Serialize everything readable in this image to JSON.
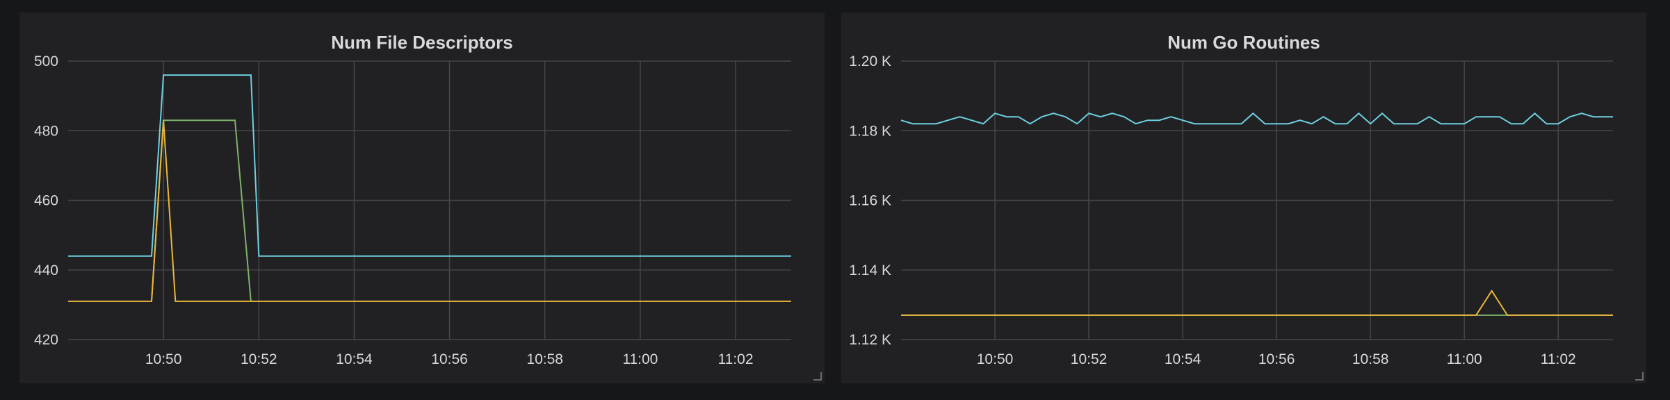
{
  "colors": {
    "background": "#161719",
    "panel": "#212124",
    "grid": "#464649",
    "text": "#d8d9da"
  },
  "chart_data": [
    {
      "type": "line",
      "title": "Num File Descriptors",
      "xlabel": "",
      "ylabel": "",
      "x_ticks": [
        "10:50",
        "10:52",
        "10:54",
        "10:56",
        "10:58",
        "11:00",
        "11:02"
      ],
      "y_ticks": [
        "500",
        "480",
        "460",
        "440",
        "420"
      ],
      "ylim": [
        420,
        500
      ],
      "xlim": [
        "10:48:00",
        "11:03:10"
      ],
      "grid": true,
      "series": [
        {
          "color": "#6ed0e0",
          "x": [
            "10:48:00",
            "10:49:45",
            "10:50:00",
            "10:51:50",
            "10:52:00",
            "11:03:10"
          ],
          "y": [
            444,
            444,
            496,
            496,
            444,
            444
          ]
        },
        {
          "color": "#7eb26d",
          "x": [
            "10:49:45",
            "10:50:00",
            "10:51:30",
            "10:51:50"
          ],
          "y": [
            431,
            483,
            483,
            431
          ]
        },
        {
          "color": "#eab839",
          "x": [
            "10:48:00",
            "10:49:45",
            "10:50:00",
            "10:50:15",
            "11:03:10"
          ],
          "y": [
            431,
            431,
            483,
            431,
            431
          ]
        }
      ]
    },
    {
      "type": "line",
      "title": "Num Go Routines",
      "xlabel": "",
      "ylabel": "",
      "x_ticks": [
        "10:50",
        "10:52",
        "10:54",
        "10:56",
        "10:58",
        "11:00",
        "11:02"
      ],
      "y_ticks": [
        "1.20 K",
        "1.18 K",
        "1.16 K",
        "1.14 K",
        "1.12 K"
      ],
      "ylim": [
        1120,
        1200
      ],
      "xlim": [
        "10:48:00",
        "11:03:10"
      ],
      "grid": true,
      "series": [
        {
          "color": "#6ed0e0",
          "x": [
            "10:48:00",
            "10:48:15",
            "10:48:30",
            "10:48:45",
            "10:49:00",
            "10:49:15",
            "10:49:30",
            "10:49:45",
            "10:50:00",
            "10:50:15",
            "10:50:30",
            "10:50:45",
            "10:51:00",
            "10:51:15",
            "10:51:30",
            "10:51:45",
            "10:52:00",
            "10:52:15",
            "10:52:30",
            "10:52:45",
            "10:53:00",
            "10:53:15",
            "10:53:30",
            "10:53:45",
            "10:54:00",
            "10:54:15",
            "10:54:30",
            "10:54:45",
            "10:55:00",
            "10:55:15",
            "10:55:30",
            "10:55:45",
            "10:56:00",
            "10:56:15",
            "10:56:30",
            "10:56:45",
            "10:57:00",
            "10:57:15",
            "10:57:30",
            "10:57:45",
            "10:58:00",
            "10:58:15",
            "10:58:30",
            "10:58:45",
            "10:59:00",
            "10:59:15",
            "10:59:30",
            "10:59:45",
            "11:00:00",
            "11:00:15",
            "11:00:30",
            "11:00:45",
            "11:01:00",
            "11:01:15",
            "11:01:30",
            "11:01:45",
            "11:02:00",
            "11:02:15",
            "11:02:30",
            "11:02:45",
            "11:03:00",
            "11:03:10"
          ],
          "y": [
            1183,
            1182,
            1182,
            1182,
            1183,
            1184,
            1183,
            1182,
            1185,
            1184,
            1184,
            1182,
            1184,
            1185,
            1184,
            1182,
            1185,
            1184,
            1185,
            1184,
            1182,
            1183,
            1183,
            1184,
            1183,
            1182,
            1182,
            1182,
            1182,
            1182,
            1185,
            1182,
            1182,
            1182,
            1183,
            1182,
            1184,
            1182,
            1182,
            1185,
            1182,
            1185,
            1182,
            1182,
            1182,
            1184,
            1182,
            1182,
            1182,
            1184,
            1184,
            1184,
            1182,
            1182,
            1185,
            1182,
            1182,
            1184,
            1185,
            1184,
            1184,
            1184
          ]
        },
        {
          "color": "#7eb26d",
          "x": [
            "10:48:00",
            "11:03:10"
          ],
          "y": [
            1127,
            1127
          ]
        },
        {
          "color": "#eab839",
          "x": [
            "10:48:00",
            "11:00:15",
            "11:00:35",
            "11:00:55",
            "11:03:10"
          ],
          "y": [
            1127,
            1127,
            1134,
            1127,
            1127
          ]
        }
      ]
    }
  ]
}
